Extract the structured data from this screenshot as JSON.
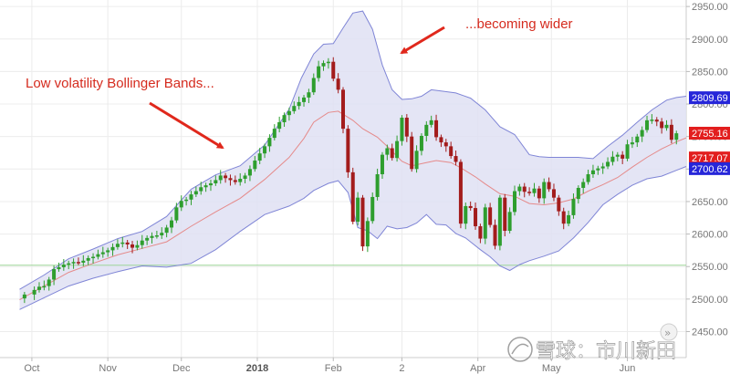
{
  "chart_data": {
    "type": "candlestick",
    "ylim": [
      2410,
      2960
    ],
    "yticks": [
      2450,
      2500,
      2550,
      2600,
      2650,
      2700,
      2750,
      2800,
      2850,
      2900,
      2950
    ],
    "xticks": [
      {
        "label": "Oct",
        "day": 5,
        "bold": false
      },
      {
        "label": "Nov",
        "day": 36,
        "bold": false
      },
      {
        "label": "Dec",
        "day": 66,
        "bold": false
      },
      {
        "label": "2018",
        "day": 97,
        "bold": true
      },
      {
        "label": "Feb",
        "day": 128,
        "bold": false
      },
      {
        "label": "2",
        "day": 156,
        "bold": false
      },
      {
        "label": "Apr",
        "day": 187,
        "bold": false
      },
      {
        "label": "May",
        "day": 217,
        "bold": false
      },
      {
        "label": "Jun",
        "day": 248,
        "bold": false
      }
    ],
    "xlim": [
      -8,
      272
    ],
    "close": [
      [
        2,
        2507
      ],
      [
        6,
        2514
      ],
      [
        8,
        2519
      ],
      [
        10,
        2520
      ],
      [
        12,
        2530
      ],
      [
        14,
        2546
      ],
      [
        16,
        2549
      ],
      [
        18,
        2553
      ],
      [
        20,
        2555
      ],
      [
        22,
        2557
      ],
      [
        24,
        2556
      ],
      [
        26,
        2559
      ],
      [
        28,
        2563
      ],
      [
        30,
        2565
      ],
      [
        32,
        2569
      ],
      [
        34,
        2572
      ],
      [
        36,
        2575
      ],
      [
        38,
        2580
      ],
      [
        40,
        2585
      ],
      [
        42,
        2587
      ],
      [
        44,
        2584
      ],
      [
        46,
        2579
      ],
      [
        48,
        2583
      ],
      [
        50,
        2590
      ],
      [
        52,
        2594
      ],
      [
        54,
        2597
      ],
      [
        56,
        2598
      ],
      [
        58,
        2602
      ],
      [
        60,
        2610
      ],
      [
        62,
        2621
      ],
      [
        64,
        2641
      ],
      [
        66,
        2651
      ],
      [
        68,
        2653
      ],
      [
        70,
        2661
      ],
      [
        72,
        2666
      ],
      [
        74,
        2672
      ],
      [
        76,
        2675
      ],
      [
        78,
        2678
      ],
      [
        80,
        2683
      ],
      [
        82,
        2690
      ],
      [
        84,
        2686
      ],
      [
        86,
        2683
      ],
      [
        88,
        2680
      ],
      [
        90,
        2685
      ],
      [
        92,
        2690
      ],
      [
        94,
        2700
      ],
      [
        96,
        2713
      ],
      [
        98,
        2724
      ],
      [
        100,
        2735
      ],
      [
        102,
        2748
      ],
      [
        104,
        2762
      ],
      [
        106,
        2772
      ],
      [
        108,
        2783
      ],
      [
        110,
        2789
      ],
      [
        112,
        2797
      ],
      [
        114,
        2803
      ],
      [
        116,
        2810
      ],
      [
        118,
        2818
      ],
      [
        120,
        2840
      ],
      [
        122,
        2858
      ],
      [
        124,
        2863
      ],
      [
        126,
        2865
      ],
      [
        128,
        2839
      ],
      [
        130,
        2822
      ],
      [
        132,
        2762
      ],
      [
        134,
        2695
      ],
      [
        136,
        2619
      ],
      [
        138,
        2656
      ],
      [
        140,
        2581
      ],
      [
        142,
        2620
      ],
      [
        144,
        2657
      ],
      [
        146,
        2692
      ],
      [
        148,
        2722
      ],
      [
        150,
        2732
      ],
      [
        152,
        2717
      ],
      [
        154,
        2743
      ],
      [
        156,
        2779
      ],
      [
        158,
        2750
      ],
      [
        160,
        2700
      ],
      [
        162,
        2728
      ],
      [
        164,
        2751
      ],
      [
        166,
        2768
      ],
      [
        168,
        2775
      ],
      [
        170,
        2749
      ],
      [
        172,
        2741
      ],
      [
        174,
        2735
      ],
      [
        176,
        2720
      ],
      [
        178,
        2711
      ],
      [
        180,
        2616
      ],
      [
        182,
        2643
      ],
      [
        184,
        2640
      ],
      [
        186,
        2612
      ],
      [
        188,
        2593
      ],
      [
        190,
        2641
      ],
      [
        192,
        2614
      ],
      [
        194,
        2582
      ],
      [
        196,
        2656
      ],
      [
        198,
        2605
      ],
      [
        200,
        2634
      ],
      [
        202,
        2666
      ],
      [
        204,
        2673
      ],
      [
        206,
        2665
      ],
      [
        208,
        2663
      ],
      [
        210,
        2670
      ],
      [
        212,
        2655
      ],
      [
        214,
        2680
      ],
      [
        216,
        2669
      ],
      [
        218,
        2656
      ],
      [
        220,
        2635
      ],
      [
        222,
        2616
      ],
      [
        224,
        2629
      ],
      [
        226,
        2654
      ],
      [
        228,
        2671
      ],
      [
        230,
        2680
      ],
      [
        232,
        2692
      ],
      [
        234,
        2698
      ],
      [
        236,
        2701
      ],
      [
        238,
        2704
      ],
      [
        240,
        2711
      ],
      [
        242,
        2719
      ],
      [
        244,
        2722
      ],
      [
        246,
        2716
      ],
      [
        248,
        2738
      ],
      [
        250,
        2741
      ],
      [
        252,
        2750
      ],
      [
        254,
        2760
      ],
      [
        256,
        2775
      ],
      [
        258,
        2776
      ],
      [
        260,
        2773
      ],
      [
        262,
        2763
      ],
      [
        264,
        2768
      ],
      [
        266,
        2745
      ],
      [
        268,
        2755
      ]
    ],
    "upper_band": [
      [
        0,
        2515
      ],
      [
        10,
        2537
      ],
      [
        20,
        2562
      ],
      [
        30,
        2577
      ],
      [
        40,
        2593
      ],
      [
        50,
        2604
      ],
      [
        60,
        2627
      ],
      [
        70,
        2669
      ],
      [
        80,
        2691
      ],
      [
        90,
        2705
      ],
      [
        100,
        2737
      ],
      [
        110,
        2792
      ],
      [
        115,
        2840
      ],
      [
        120,
        2877
      ],
      [
        124,
        2892
      ],
      [
        128,
        2893
      ],
      [
        132,
        2917
      ],
      [
        136,
        2940
      ],
      [
        140,
        2943
      ],
      [
        144,
        2915
      ],
      [
        148,
        2860
      ],
      [
        152,
        2822
      ],
      [
        156,
        2807
      ],
      [
        160,
        2808
      ],
      [
        164,
        2812
      ],
      [
        168,
        2822
      ],
      [
        172,
        2820
      ],
      [
        178,
        2817
      ],
      [
        184,
        2809
      ],
      [
        190,
        2791
      ],
      [
        196,
        2765
      ],
      [
        202,
        2753
      ],
      [
        208,
        2722
      ],
      [
        212,
        2719
      ],
      [
        216,
        2718
      ],
      [
        222,
        2718
      ],
      [
        228,
        2718
      ],
      [
        234,
        2716
      ],
      [
        240,
        2735
      ],
      [
        246,
        2752
      ],
      [
        252,
        2772
      ],
      [
        258,
        2791
      ],
      [
        264,
        2806
      ],
      [
        268,
        2810
      ],
      [
        272,
        2812
      ]
    ],
    "lower_band": [
      [
        0,
        2484
      ],
      [
        10,
        2502
      ],
      [
        20,
        2520
      ],
      [
        30,
        2532
      ],
      [
        40,
        2542
      ],
      [
        50,
        2551
      ],
      [
        60,
        2549
      ],
      [
        70,
        2555
      ],
      [
        80,
        2576
      ],
      [
        90,
        2604
      ],
      [
        100,
        2630
      ],
      [
        110,
        2643
      ],
      [
        116,
        2655
      ],
      [
        120,
        2667
      ],
      [
        126,
        2678
      ],
      [
        130,
        2682
      ],
      [
        134,
        2664
      ],
      [
        138,
        2610
      ],
      [
        142,
        2605
      ],
      [
        146,
        2593
      ],
      [
        150,
        2612
      ],
      [
        154,
        2608
      ],
      [
        158,
        2610
      ],
      [
        162,
        2617
      ],
      [
        166,
        2630
      ],
      [
        170,
        2615
      ],
      [
        174,
        2614
      ],
      [
        178,
        2601
      ],
      [
        182,
        2594
      ],
      [
        188,
        2576
      ],
      [
        192,
        2565
      ],
      [
        196,
        2551
      ],
      [
        200,
        2544
      ],
      [
        204,
        2553
      ],
      [
        208,
        2559
      ],
      [
        214,
        2566
      ],
      [
        220,
        2574
      ],
      [
        226,
        2594
      ],
      [
        232,
        2618
      ],
      [
        238,
        2645
      ],
      [
        244,
        2661
      ],
      [
        250,
        2675
      ],
      [
        256,
        2685
      ],
      [
        262,
        2689
      ],
      [
        268,
        2698
      ],
      [
        272,
        2704
      ]
    ],
    "mid_band": [
      [
        0,
        2499
      ],
      [
        10,
        2520
      ],
      [
        20,
        2541
      ],
      [
        30,
        2555
      ],
      [
        40,
        2568
      ],
      [
        50,
        2578
      ],
      [
        60,
        2588
      ],
      [
        70,
        2612
      ],
      [
        80,
        2634
      ],
      [
        90,
        2655
      ],
      [
        100,
        2684
      ],
      [
        110,
        2718
      ],
      [
        116,
        2747
      ],
      [
        120,
        2772
      ],
      [
        126,
        2787
      ],
      [
        130,
        2789
      ],
      [
        136,
        2775
      ],
      [
        140,
        2762
      ],
      [
        146,
        2749
      ],
      [
        150,
        2735
      ],
      [
        156,
        2712
      ],
      [
        160,
        2705
      ],
      [
        166,
        2710
      ],
      [
        170,
        2713
      ],
      [
        176,
        2710
      ],
      [
        180,
        2702
      ],
      [
        186,
        2688
      ],
      [
        190,
        2677
      ],
      [
        196,
        2662
      ],
      [
        202,
        2658
      ],
      [
        208,
        2647
      ],
      [
        214,
        2645
      ],
      [
        220,
        2648
      ],
      [
        226,
        2654
      ],
      [
        232,
        2666
      ],
      [
        238,
        2676
      ],
      [
        244,
        2687
      ],
      [
        250,
        2703
      ],
      [
        256,
        2718
      ],
      [
        262,
        2731
      ],
      [
        268,
        2742
      ],
      [
        272,
        2748
      ]
    ],
    "reference_line": 2552,
    "price_labels": [
      {
        "value": 2809.69,
        "text": "2809.69",
        "color": "#2626d9"
      },
      {
        "value": 2755.16,
        "text": "2755.16",
        "color": "#e21e1e"
      },
      {
        "value": 2717.07,
        "text": "2717.07",
        "color": "#e21e1e"
      },
      {
        "value": 2700.62,
        "text": "2700.62",
        "color": "#2626d9"
      }
    ],
    "annotations": [
      {
        "text": "Low volatility Bollinger Bands...",
        "key": "low_vol"
      },
      {
        "text": "...becoming wider",
        "key": "wider"
      }
    ],
    "colors": {
      "up": "#2e9e2e",
      "down": "#a31c1c",
      "band_line": "#7f85d6",
      "band_fill": "#dfe1f3",
      "mid_line": "#e58a8a",
      "reference_line": "#9dd69a",
      "arrow": "#e0281c"
    }
  },
  "watermark": {
    "text": "雪球：市川新田"
  }
}
